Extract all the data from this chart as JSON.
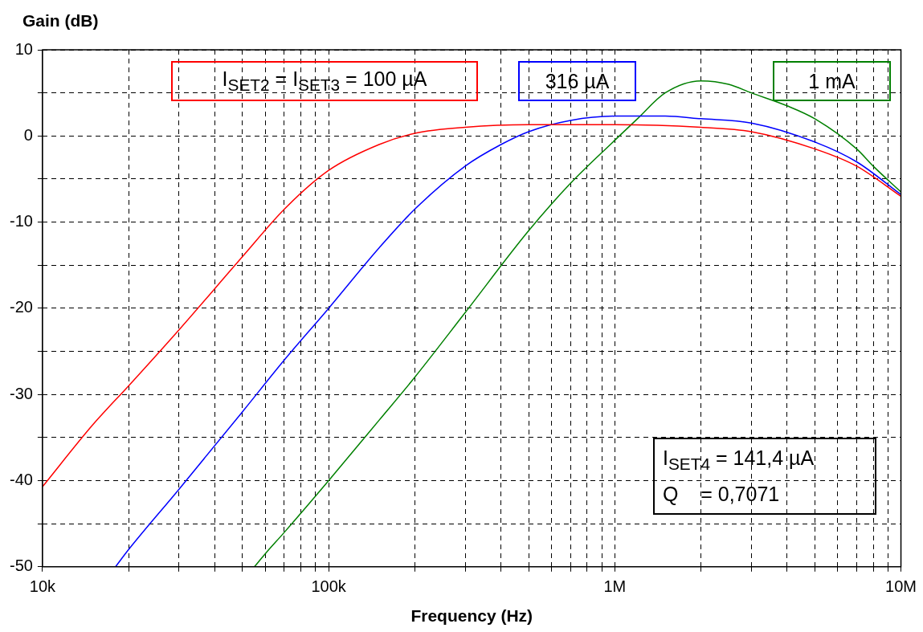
{
  "chart_data": {
    "type": "line",
    "xlabel": "Frequency (Hz)",
    "ylabel": "Gain (dB)",
    "log": "x",
    "grid": true,
    "legend": "top",
    "marker": "none",
    "line_style": "solid",
    "xlim": [
      10000,
      10000000
    ],
    "xticks": [
      {
        "value": 10000,
        "label": "10k"
      },
      {
        "value": 20000,
        "label": null
      },
      {
        "value": 30000,
        "label": null
      },
      {
        "value": 40000,
        "label": null
      },
      {
        "value": 50000,
        "label": null
      },
      {
        "value": 60000,
        "label": null
      },
      {
        "value": 70000,
        "label": null
      },
      {
        "value": 80000,
        "label": null
      },
      {
        "value": 90000,
        "label": null
      },
      {
        "value": 100000,
        "label": "100k"
      },
      {
        "value": 200000,
        "label": null
      },
      {
        "value": 300000,
        "label": null
      },
      {
        "value": 400000,
        "label": null
      },
      {
        "value": 500000,
        "label": null
      },
      {
        "value": 600000,
        "label": null
      },
      {
        "value": 700000,
        "label": null
      },
      {
        "value": 800000,
        "label": null
      },
      {
        "value": 900000,
        "label": null
      },
      {
        "value": 1000000,
        "label": "1M"
      },
      {
        "value": 2000000,
        "label": null
      },
      {
        "value": 3000000,
        "label": null
      },
      {
        "value": 4000000,
        "label": null
      },
      {
        "value": 5000000,
        "label": null
      },
      {
        "value": 6000000,
        "label": null
      },
      {
        "value": 7000000,
        "label": null
      },
      {
        "value": 8000000,
        "label": null
      },
      {
        "value": 9000000,
        "label": null
      },
      {
        "value": 10000000,
        "label": "10M"
      }
    ],
    "ylim": [
      -50,
      10
    ],
    "yticks": [
      -50,
      {
        "value": -45,
        "label": null
      },
      -40,
      {
        "value": -35,
        "label": null
      },
      -30,
      {
        "value": -25,
        "label": null
      },
      -20,
      {
        "value": -15,
        "label": null
      },
      -10,
      {
        "value": -5,
        "label": null
      },
      0,
      {
        "value": 5,
        "label": null
      },
      10
    ],
    "series": [
      {
        "name": "I$_{SET2}$ = I$_{SET3}$ = 100 µA",
        "color": "#ff0000",
        "x": [
          10000,
          15000,
          20000,
          30000,
          50000,
          70000,
          100000,
          150000,
          200000,
          300000,
          500000,
          1000000,
          2000000,
          3000000,
          5000000,
          7000000,
          10000000
        ],
        "values": [
          -40.7,
          -33.5,
          -29,
          -22.5,
          -14,
          -8.5,
          -4,
          -1,
          0.3,
          1,
          1.3,
          1.3,
          1,
          0.5,
          -1.5,
          -3.5,
          -7
        ]
      },
      {
        "name": "316 µA",
        "color": "#0000ff",
        "x": [
          18000,
          20000,
          30000,
          50000,
          70000,
          100000,
          150000,
          200000,
          300000,
          400000,
          500000,
          700000,
          1000000,
          1500000,
          2000000,
          3000000,
          5000000,
          7000000,
          10000000
        ],
        "values": [
          -50,
          -48,
          -41,
          -32,
          -26,
          -20,
          -13,
          -8.5,
          -3.5,
          -1,
          0.5,
          1.8,
          2.3,
          2.3,
          2,
          1.5,
          -0.7,
          -3,
          -6.8
        ]
      },
      {
        "name": "1 mA",
        "color": "#008000",
        "x": [
          55000,
          60000,
          70000,
          100000,
          150000,
          200000,
          300000,
          500000,
          700000,
          1000000,
          1200000,
          1500000,
          2000000,
          2500000,
          3000000,
          4000000,
          5000000,
          7000000,
          8000000,
          10000000
        ],
        "values": [
          -50,
          -48.5,
          -46,
          -40,
          -33,
          -28,
          -20.5,
          -11,
          -5.5,
          -0.5,
          2,
          5,
          6.4,
          6,
          5,
          3.5,
          2,
          -1.5,
          -3.5,
          -6.5
        ]
      }
    ],
    "annotations": [
      "I$_{SET4}$ = 141,4 µA",
      "Q    = 0,7071"
    ]
  }
}
